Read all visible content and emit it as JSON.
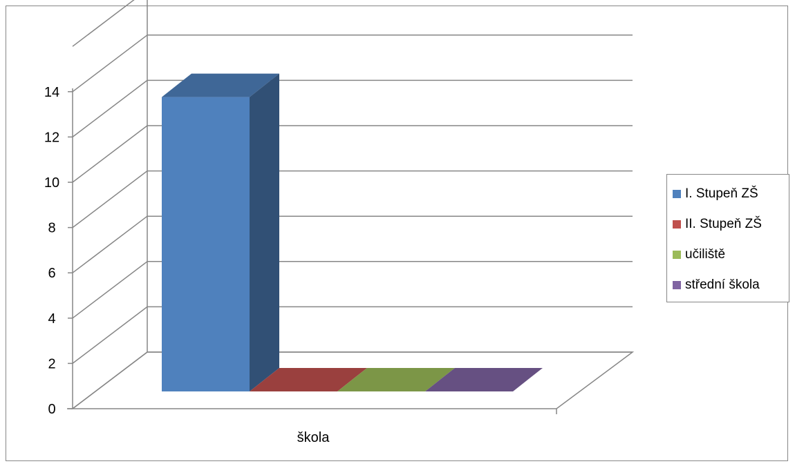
{
  "chart_data": {
    "type": "bar",
    "view": "3d-clustered-column",
    "categories": [
      "škola"
    ],
    "series": [
      {
        "name": "I. Stupeň ZŠ",
        "values": [
          13
        ],
        "color": "#4F81BD"
      },
      {
        "name": "II. Stupeň ZŠ",
        "values": [
          0
        ],
        "color": "#C0504D"
      },
      {
        "name": "učiliště",
        "values": [
          0
        ],
        "color": "#9BBB59"
      },
      {
        "name": "střední škola",
        "values": [
          0
        ],
        "color": "#8064A2"
      }
    ],
    "yticks": [
      "0",
      "2",
      "4",
      "6",
      "8",
      "10",
      "12",
      "14"
    ],
    "ylim": [
      0,
      16
    ],
    "grid": true,
    "legend": "right"
  }
}
